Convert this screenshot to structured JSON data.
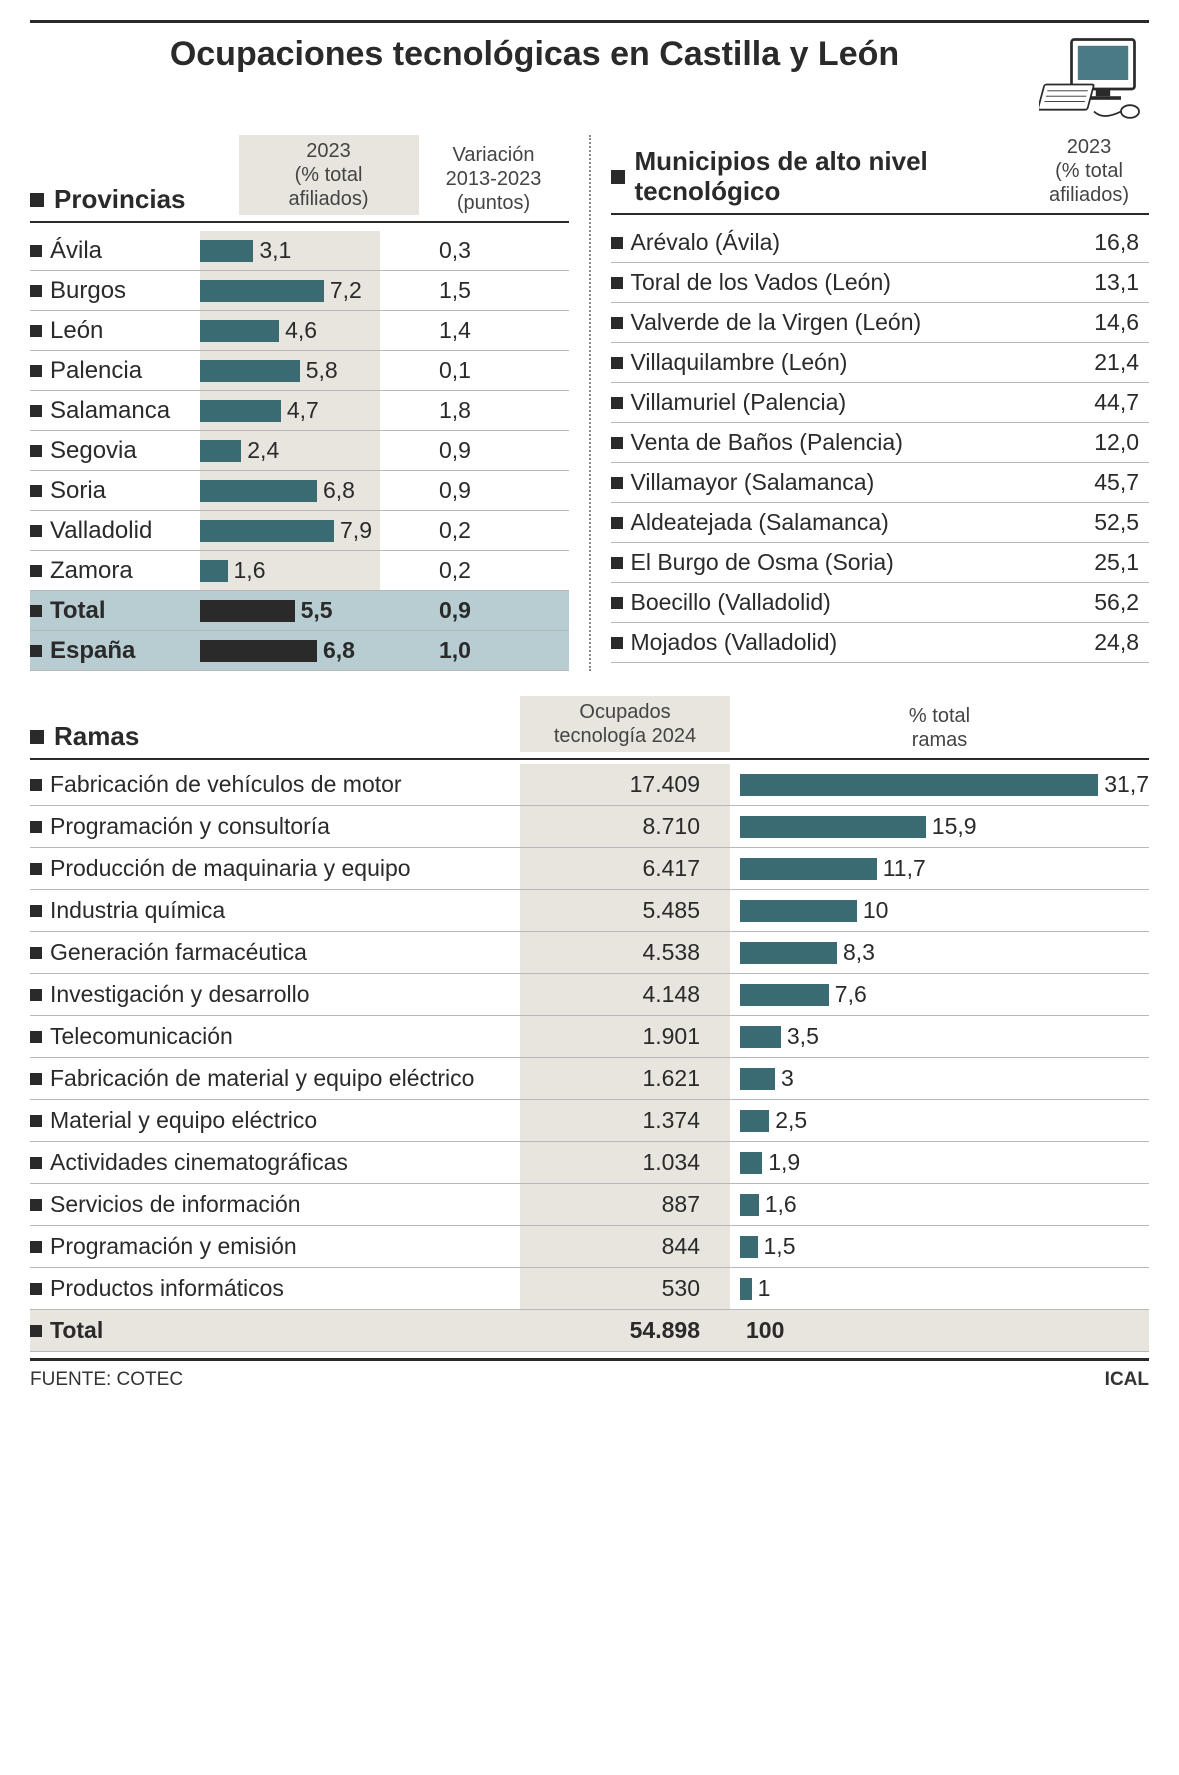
{
  "title": "Ocupaciones tecnológicas en Castilla y León",
  "colors": {
    "bar": "#3a6b72",
    "bar_bg": "#e8e5df",
    "highlight_bg": "#b8cdd2",
    "highlight_bar": "#2a2a2a",
    "rule": "#2a2a2a",
    "row_border": "#b8b8b8"
  },
  "provincias": {
    "title": "Provincias",
    "col1_header": "2023\n(% total\nafiliados)",
    "col2_header": "Variación\n2013-2023\n(puntos)",
    "bar_max": 10,
    "rows": [
      {
        "name": "Ávila",
        "pct": 3.1,
        "pct_label": "3,1",
        "var": "0,3",
        "hl": false
      },
      {
        "name": "Burgos",
        "pct": 7.2,
        "pct_label": "7,2",
        "var": "1,5",
        "hl": false
      },
      {
        "name": "León",
        "pct": 4.6,
        "pct_label": "4,6",
        "var": "1,4",
        "hl": false
      },
      {
        "name": "Palencia",
        "pct": 5.8,
        "pct_label": "5,8",
        "var": "0,1",
        "hl": false
      },
      {
        "name": "Salamanca",
        "pct": 4.7,
        "pct_label": "4,7",
        "var": "1,8",
        "hl": false
      },
      {
        "name": "Segovia",
        "pct": 2.4,
        "pct_label": "2,4",
        "var": "0,9",
        "hl": false
      },
      {
        "name": "Soria",
        "pct": 6.8,
        "pct_label": "6,8",
        "var": "0,9",
        "hl": false
      },
      {
        "name": "Valladolid",
        "pct": 7.9,
        "pct_label": "7,9",
        "var": "0,2",
        "hl": false
      },
      {
        "name": "Zamora",
        "pct": 1.6,
        "pct_label": "1,6",
        "var": "0,2",
        "hl": false
      },
      {
        "name": "Total",
        "pct": 5.5,
        "pct_label": "5,5",
        "var": "0,9",
        "hl": true
      },
      {
        "name": "España",
        "pct": 6.8,
        "pct_label": "6,8",
        "var": "1,0",
        "hl": true
      }
    ]
  },
  "municipios": {
    "title": "Municipios de alto nivel tecnológico",
    "col_header": "2023\n(% total\nafiliados)",
    "rows": [
      {
        "name": "Arévalo (Ávila)",
        "val": "16,8"
      },
      {
        "name": "Toral de los Vados (León)",
        "val": "13,1"
      },
      {
        "name": "Valverde de la Virgen (León)",
        "val": "14,6"
      },
      {
        "name": "Villaquilambre (León)",
        "val": "21,4"
      },
      {
        "name": "Villamuriel (Palencia)",
        "val": "44,7"
      },
      {
        "name": "Venta de Baños (Palencia)",
        "val": "12,0"
      },
      {
        "name": "Villamayor (Salamanca)",
        "val": "45,7"
      },
      {
        "name": "Aldeatejada (Salamanca)",
        "val": "52,5"
      },
      {
        "name": "El Burgo de Osma (Soria)",
        "val": "25,1"
      },
      {
        "name": "Boecillo (Valladolid)",
        "val": "56,2"
      },
      {
        "name": "Mojados (Valladolid)",
        "val": "24,8"
      }
    ]
  },
  "ramas": {
    "title": "Ramas",
    "col1_header": "Ocupados\ntecnología 2024",
    "col2_header": "% total\nramas",
    "bar_max": 35,
    "rows": [
      {
        "name": "Fabricación de vehículos de motor",
        "ocup": "17.409",
        "pct": 31.7,
        "pct_label": "31,7"
      },
      {
        "name": "Programación y consultoría",
        "ocup": "8.710",
        "pct": 15.9,
        "pct_label": "15,9"
      },
      {
        "name": "Producción de maquinaria y equipo",
        "ocup": "6.417",
        "pct": 11.7,
        "pct_label": "11,7"
      },
      {
        "name": "Industria química",
        "ocup": "5.485",
        "pct": 10,
        "pct_label": "10"
      },
      {
        "name": "Generación farmacéutica",
        "ocup": "4.538",
        "pct": 8.3,
        "pct_label": "8,3"
      },
      {
        "name": "Investigación y desarrollo",
        "ocup": "4.148",
        "pct": 7.6,
        "pct_label": "7,6"
      },
      {
        "name": "Telecomunicación",
        "ocup": "1.901",
        "pct": 3.5,
        "pct_label": "3,5"
      },
      {
        "name": "Fabricación de material y equipo eléctrico",
        "ocup": "1.621",
        "pct": 3,
        "pct_label": "3"
      },
      {
        "name": "Material y equipo eléctrico",
        "ocup": "1.374",
        "pct": 2.5,
        "pct_label": "2,5"
      },
      {
        "name": "Actividades cinematográficas",
        "ocup": "1.034",
        "pct": 1.9,
        "pct_label": "1,9"
      },
      {
        "name": "Servicios de información",
        "ocup": "887",
        "pct": 1.6,
        "pct_label": "1,6"
      },
      {
        "name": "Programación y emisión",
        "ocup": "844",
        "pct": 1.5,
        "pct_label": "1,5"
      },
      {
        "name": "Productos informáticos",
        "ocup": "530",
        "pct": 1,
        "pct_label": "1"
      }
    ],
    "total": {
      "name": "Total",
      "ocup": "54.898",
      "pct_label": "100"
    }
  },
  "footer": {
    "source": "FUENTE: COTEC",
    "credit": "ICAL"
  }
}
